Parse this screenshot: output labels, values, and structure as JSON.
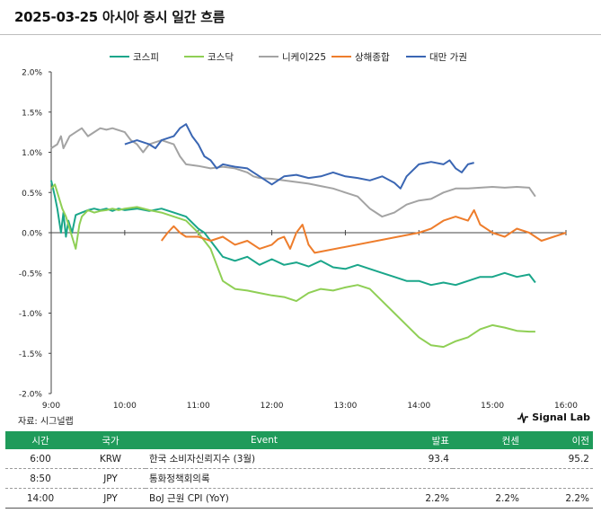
{
  "title": "2025-03-25 아시아 증시 일간 흐름",
  "source": "자료: 시그널랩",
  "brand": "Signal Lab",
  "colors": {
    "header_bg": "#1f9b5a",
    "kospi": "#1aa68a",
    "kosdaq": "#8fcf55",
    "nikkei": "#a3a3a3",
    "shanghai": "#ee7d2c",
    "taiwan": "#3a66b3"
  },
  "chart_data": {
    "type": "line",
    "x_ticks": [
      "9:00",
      "10:00",
      "11:00",
      "12:00",
      "13:00",
      "14:00",
      "15:00",
      "16:00"
    ],
    "y_ticks": [
      "2.0%",
      "1.5%",
      "1.0%",
      "0.5%",
      "0.0%",
      "-0.5%",
      "-1.0%",
      "-1.5%",
      "-2.0%"
    ],
    "xlim": [
      "9:00",
      "16:00"
    ],
    "ylim": [
      -2.0,
      2.0
    ],
    "grid": false,
    "legend_position": "top-center",
    "series": [
      {
        "name": "코스피",
        "color": "#1aa68a",
        "points": [
          [
            "9:00",
            0.65
          ],
          [
            "9:03",
            0.45
          ],
          [
            "9:05",
            0.3
          ],
          [
            "9:08",
            0.0
          ],
          [
            "9:10",
            0.25
          ],
          [
            "9:12",
            -0.05
          ],
          [
            "9:14",
            0.15
          ],
          [
            "9:17",
            0.0
          ],
          [
            "9:20",
            0.22
          ],
          [
            "9:25",
            0.25
          ],
          [
            "9:30",
            0.28
          ],
          [
            "9:35",
            0.3
          ],
          [
            "9:40",
            0.28
          ],
          [
            "9:45",
            0.3
          ],
          [
            "9:50",
            0.27
          ],
          [
            "9:55",
            0.3
          ],
          [
            "10:00",
            0.28
          ],
          [
            "10:10",
            0.3
          ],
          [
            "10:20",
            0.27
          ],
          [
            "10:30",
            0.3
          ],
          [
            "10:40",
            0.25
          ],
          [
            "10:50",
            0.2
          ],
          [
            "11:00",
            0.05
          ],
          [
            "11:05",
            0.0
          ],
          [
            "11:10",
            -0.1
          ],
          [
            "11:15",
            -0.2
          ],
          [
            "11:20",
            -0.3
          ],
          [
            "11:30",
            -0.35
          ],
          [
            "11:40",
            -0.3
          ],
          [
            "11:50",
            -0.4
          ],
          [
            "12:00",
            -0.33
          ],
          [
            "12:10",
            -0.4
          ],
          [
            "12:20",
            -0.37
          ],
          [
            "12:30",
            -0.42
          ],
          [
            "12:40",
            -0.35
          ],
          [
            "12:50",
            -0.43
          ],
          [
            "13:00",
            -0.45
          ],
          [
            "13:10",
            -0.4
          ],
          [
            "13:20",
            -0.45
          ],
          [
            "13:30",
            -0.5
          ],
          [
            "13:40",
            -0.55
          ],
          [
            "13:50",
            -0.6
          ],
          [
            "14:00",
            -0.6
          ],
          [
            "14:10",
            -0.65
          ],
          [
            "14:20",
            -0.62
          ],
          [
            "14:30",
            -0.65
          ],
          [
            "14:40",
            -0.6
          ],
          [
            "14:50",
            -0.55
          ],
          [
            "15:00",
            -0.55
          ],
          [
            "15:10",
            -0.5
          ],
          [
            "15:20",
            -0.55
          ],
          [
            "15:30",
            -0.52
          ],
          [
            "15:35",
            -0.62
          ]
        ]
      },
      {
        "name": "코스닥",
        "color": "#8fcf55",
        "points": [
          [
            "9:00",
            0.55
          ],
          [
            "9:03",
            0.6
          ],
          [
            "9:06",
            0.45
          ],
          [
            "9:09",
            0.3
          ],
          [
            "9:12",
            0.2
          ],
          [
            "9:15",
            0.05
          ],
          [
            "9:18",
            -0.1
          ],
          [
            "9:20",
            -0.2
          ],
          [
            "9:23",
            0.1
          ],
          [
            "9:25",
            0.2
          ],
          [
            "9:30",
            0.28
          ],
          [
            "9:35",
            0.25
          ],
          [
            "9:40",
            0.27
          ],
          [
            "9:45",
            0.28
          ],
          [
            "9:50",
            0.3
          ],
          [
            "9:55",
            0.28
          ],
          [
            "10:00",
            0.3
          ],
          [
            "10:10",
            0.32
          ],
          [
            "10:20",
            0.28
          ],
          [
            "10:30",
            0.25
          ],
          [
            "10:40",
            0.2
          ],
          [
            "10:50",
            0.15
          ],
          [
            "11:00",
            0.0
          ],
          [
            "11:05",
            -0.1
          ],
          [
            "11:10",
            -0.2
          ],
          [
            "11:15",
            -0.4
          ],
          [
            "11:20",
            -0.6
          ],
          [
            "11:30",
            -0.7
          ],
          [
            "11:40",
            -0.72
          ],
          [
            "11:50",
            -0.75
          ],
          [
            "12:00",
            -0.78
          ],
          [
            "12:10",
            -0.8
          ],
          [
            "12:20",
            -0.85
          ],
          [
            "12:30",
            -0.75
          ],
          [
            "12:40",
            -0.7
          ],
          [
            "12:50",
            -0.72
          ],
          [
            "13:00",
            -0.68
          ],
          [
            "13:10",
            -0.65
          ],
          [
            "13:20",
            -0.7
          ],
          [
            "13:30",
            -0.85
          ],
          [
            "13:40",
            -1.0
          ],
          [
            "13:50",
            -1.15
          ],
          [
            "14:00",
            -1.3
          ],
          [
            "14:10",
            -1.4
          ],
          [
            "14:20",
            -1.42
          ],
          [
            "14:30",
            -1.35
          ],
          [
            "14:40",
            -1.3
          ],
          [
            "14:50",
            -1.2
          ],
          [
            "15:00",
            -1.15
          ],
          [
            "15:10",
            -1.18
          ],
          [
            "15:20",
            -1.22
          ],
          [
            "15:30",
            -1.23
          ],
          [
            "15:35",
            -1.23
          ]
        ]
      },
      {
        "name": "니케이225",
        "color": "#a3a3a3",
        "points": [
          [
            "9:00",
            1.05
          ],
          [
            "9:05",
            1.1
          ],
          [
            "9:08",
            1.2
          ],
          [
            "9:10",
            1.05
          ],
          [
            "9:15",
            1.2
          ],
          [
            "9:20",
            1.25
          ],
          [
            "9:25",
            1.3
          ],
          [
            "9:30",
            1.2
          ],
          [
            "9:35",
            1.25
          ],
          [
            "9:40",
            1.3
          ],
          [
            "9:45",
            1.28
          ],
          [
            "9:50",
            1.3
          ],
          [
            "10:00",
            1.25
          ],
          [
            "10:05",
            1.15
          ],
          [
            "10:10",
            1.1
          ],
          [
            "10:15",
            1.0
          ],
          [
            "10:20",
            1.1
          ],
          [
            "10:30",
            1.15
          ],
          [
            "10:40",
            1.1
          ],
          [
            "10:45",
            0.95
          ],
          [
            "10:50",
            0.85
          ],
          [
            "11:00",
            0.83
          ],
          [
            "11:10",
            0.8
          ],
          [
            "11:20",
            0.82
          ],
          [
            "11:30",
            0.8
          ],
          [
            "11:40",
            0.75
          ],
          [
            "11:45",
            0.7
          ],
          [
            "11:50",
            0.68
          ],
          [
            "12:00",
            0.67
          ],
          [
            "12:30",
            0.61
          ],
          [
            "12:40",
            0.58
          ],
          [
            "12:50",
            0.55
          ],
          [
            "13:00",
            0.5
          ],
          [
            "13:10",
            0.45
          ],
          [
            "13:20",
            0.3
          ],
          [
            "13:25",
            0.25
          ],
          [
            "13:30",
            0.2
          ],
          [
            "13:40",
            0.25
          ],
          [
            "13:50",
            0.35
          ],
          [
            "14:00",
            0.4
          ],
          [
            "14:10",
            0.42
          ],
          [
            "14:20",
            0.5
          ],
          [
            "14:30",
            0.55
          ],
          [
            "14:40",
            0.55
          ],
          [
            "14:50",
            0.56
          ],
          [
            "15:00",
            0.57
          ],
          [
            "15:10",
            0.56
          ],
          [
            "15:20",
            0.57
          ],
          [
            "15:30",
            0.56
          ],
          [
            "15:35",
            0.45
          ]
        ]
      },
      {
        "name": "상해종합",
        "color": "#ee7d2c",
        "points": [
          [
            "10:30",
            -0.1
          ],
          [
            "10:35",
            0.0
          ],
          [
            "10:40",
            0.08
          ],
          [
            "10:45",
            0.0
          ],
          [
            "10:50",
            -0.05
          ],
          [
            "11:00",
            -0.05
          ],
          [
            "11:10",
            -0.1
          ],
          [
            "11:20",
            -0.05
          ],
          [
            "11:30",
            -0.15
          ],
          [
            "11:40",
            -0.1
          ],
          [
            "11:50",
            -0.2
          ],
          [
            "12:00",
            -0.15
          ],
          [
            "12:05",
            -0.08
          ],
          [
            "12:10",
            -0.05
          ],
          [
            "12:15",
            -0.2
          ],
          [
            "12:20",
            0.0
          ],
          [
            "12:25",
            0.1
          ],
          [
            "12:30",
            -0.15
          ],
          [
            "12:35",
            -0.25
          ],
          [
            "14:00",
            0.0
          ],
          [
            "14:10",
            0.05
          ],
          [
            "14:20",
            0.15
          ],
          [
            "14:30",
            0.2
          ],
          [
            "14:40",
            0.15
          ],
          [
            "14:45",
            0.28
          ],
          [
            "14:50",
            0.1
          ],
          [
            "15:00",
            0.0
          ],
          [
            "15:10",
            -0.05
          ],
          [
            "15:20",
            0.05
          ],
          [
            "15:30",
            0.0
          ],
          [
            "15:40",
            -0.1
          ],
          [
            "15:50",
            -0.05
          ],
          [
            "16:00",
            0.0
          ]
        ]
      },
      {
        "name": "대만 가권",
        "color": "#3a66b3",
        "points": [
          [
            "10:00",
            1.1
          ],
          [
            "10:10",
            1.15
          ],
          [
            "10:20",
            1.1
          ],
          [
            "10:25",
            1.05
          ],
          [
            "10:30",
            1.15
          ],
          [
            "10:40",
            1.2
          ],
          [
            "10:45",
            1.3
          ],
          [
            "10:50",
            1.35
          ],
          [
            "10:55",
            1.2
          ],
          [
            "11:00",
            1.1
          ],
          [
            "11:05",
            0.95
          ],
          [
            "11:10",
            0.9
          ],
          [
            "11:15",
            0.8
          ],
          [
            "11:20",
            0.85
          ],
          [
            "11:30",
            0.82
          ],
          [
            "11:40",
            0.8
          ],
          [
            "11:45",
            0.75
          ],
          [
            "11:50",
            0.7
          ],
          [
            "12:00",
            0.6
          ],
          [
            "12:10",
            0.7
          ],
          [
            "12:20",
            0.72
          ],
          [
            "12:30",
            0.68
          ],
          [
            "12:40",
            0.7
          ],
          [
            "12:50",
            0.75
          ],
          [
            "13:00",
            0.7
          ],
          [
            "13:10",
            0.68
          ],
          [
            "13:20",
            0.65
          ],
          [
            "13:30",
            0.7
          ],
          [
            "13:40",
            0.62
          ],
          [
            "13:45",
            0.55
          ],
          [
            "13:50",
            0.7
          ],
          [
            "14:00",
            0.85
          ],
          [
            "14:10",
            0.88
          ],
          [
            "14:20",
            0.85
          ],
          [
            "14:25",
            0.9
          ],
          [
            "14:30",
            0.8
          ],
          [
            "14:35",
            0.75
          ],
          [
            "14:40",
            0.85
          ],
          [
            "14:45",
            0.87
          ]
        ]
      }
    ]
  },
  "table": {
    "headers": [
      "시간",
      "국가",
      "Event",
      "발표",
      "컨센",
      "이전"
    ],
    "rows": [
      [
        "6:00",
        "KRW",
        "한국 소비자신뢰지수 (3월)",
        "93.4",
        "",
        "95.2"
      ],
      [
        "8:50",
        "JPY",
        "통화정책회의록",
        "",
        "",
        ""
      ],
      [
        "14:00",
        "JPY",
        "BoJ 근원 CPI (YoY)",
        "2.2%",
        "2.2%",
        "2.2%"
      ]
    ]
  }
}
